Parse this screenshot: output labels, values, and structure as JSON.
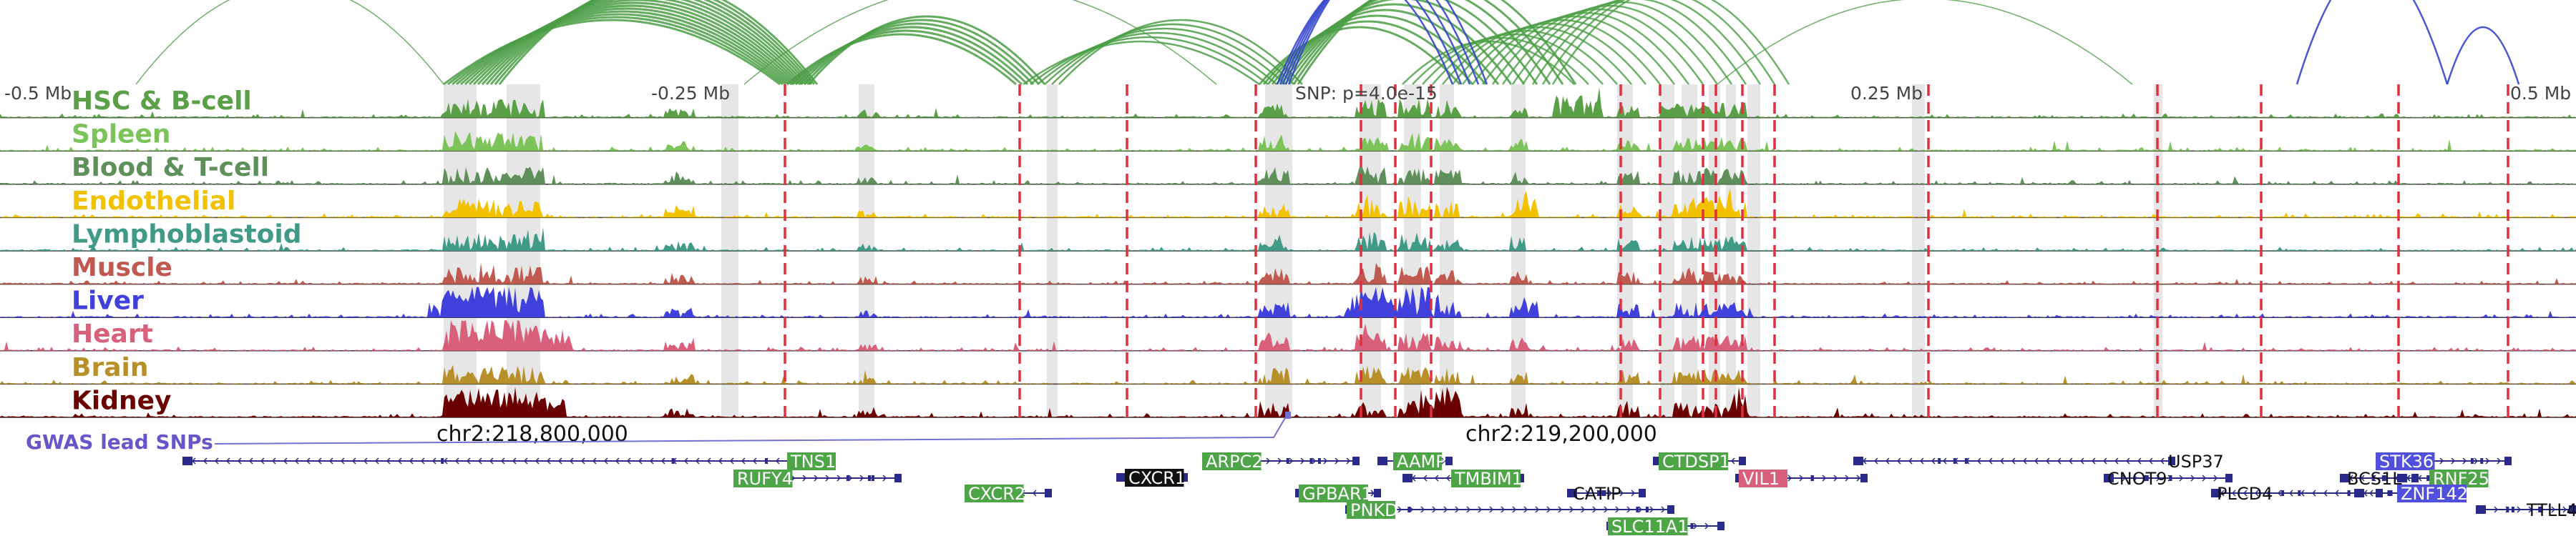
{
  "scale_labels": [
    "-0.5 Mb",
    "-0.25 Mb",
    "0.25 Mb",
    "0.5 Mb"
  ],
  "snp_label": "SNP: p=4.0e-15",
  "tracks": [
    {
      "name": "HSC & B-cell",
      "color": "#5aa046"
    },
    {
      "name": "Spleen",
      "color": "#7cc45a"
    },
    {
      "name": "Blood & T-cell",
      "color": "#5f8f5a"
    },
    {
      "name": "Endothelial",
      "color": "#f2c200"
    },
    {
      "name": "Lymphoblastoid",
      "color": "#3f9a86"
    },
    {
      "name": "Muscle",
      "color": "#c05a50"
    },
    {
      "name": "Liver",
      "color": "#4040dd"
    },
    {
      "name": "Heart",
      "color": "#d8607a"
    },
    {
      "name": "Brain",
      "color": "#b8902a"
    },
    {
      "name": "Kidney",
      "color": "#6b0000"
    }
  ],
  "gwas_label": "GWAS lead SNPs",
  "coordinates": [
    "chr2:218,800,000",
    "chr2:219,200,000"
  ],
  "genes": [
    {
      "name": "TNS1",
      "style": "green"
    },
    {
      "name": "RUFY4",
      "style": "green"
    },
    {
      "name": "CXCR2",
      "style": "green"
    },
    {
      "name": "CXCR1",
      "style": "black"
    },
    {
      "name": "ARPC2",
      "style": "green"
    },
    {
      "name": "GPBAR1",
      "style": "green"
    },
    {
      "name": "PNKD",
      "style": "green"
    },
    {
      "name": "AAMP",
      "style": "green"
    },
    {
      "name": "TMBIM1",
      "style": "green"
    },
    {
      "name": "CATIP",
      "style": "plain"
    },
    {
      "name": "CTDSP1",
      "style": "green"
    },
    {
      "name": "SLC11A1",
      "style": "green"
    },
    {
      "name": "VIL1",
      "style": "pink"
    },
    {
      "name": "USP37",
      "style": "plain"
    },
    {
      "name": "CNOT9",
      "style": "plain"
    },
    {
      "name": "PLCD4",
      "style": "plain"
    },
    {
      "name": "STK36",
      "style": "blue"
    },
    {
      "name": "BCS1L",
      "style": "plain"
    },
    {
      "name": "RNF25",
      "style": "green"
    },
    {
      "name": "ZNF142",
      "style": "blue"
    },
    {
      "name": "TTLL4",
      "style": "plain"
    }
  ],
  "colors": {
    "arc_green": "#4a9e44",
    "arc_blue": "#3446cc",
    "gwas_line": "#e03040",
    "highlight": "#c8c8c8",
    "gene_line": "#2a2a8a",
    "snp_line": "#7070d0"
  }
}
